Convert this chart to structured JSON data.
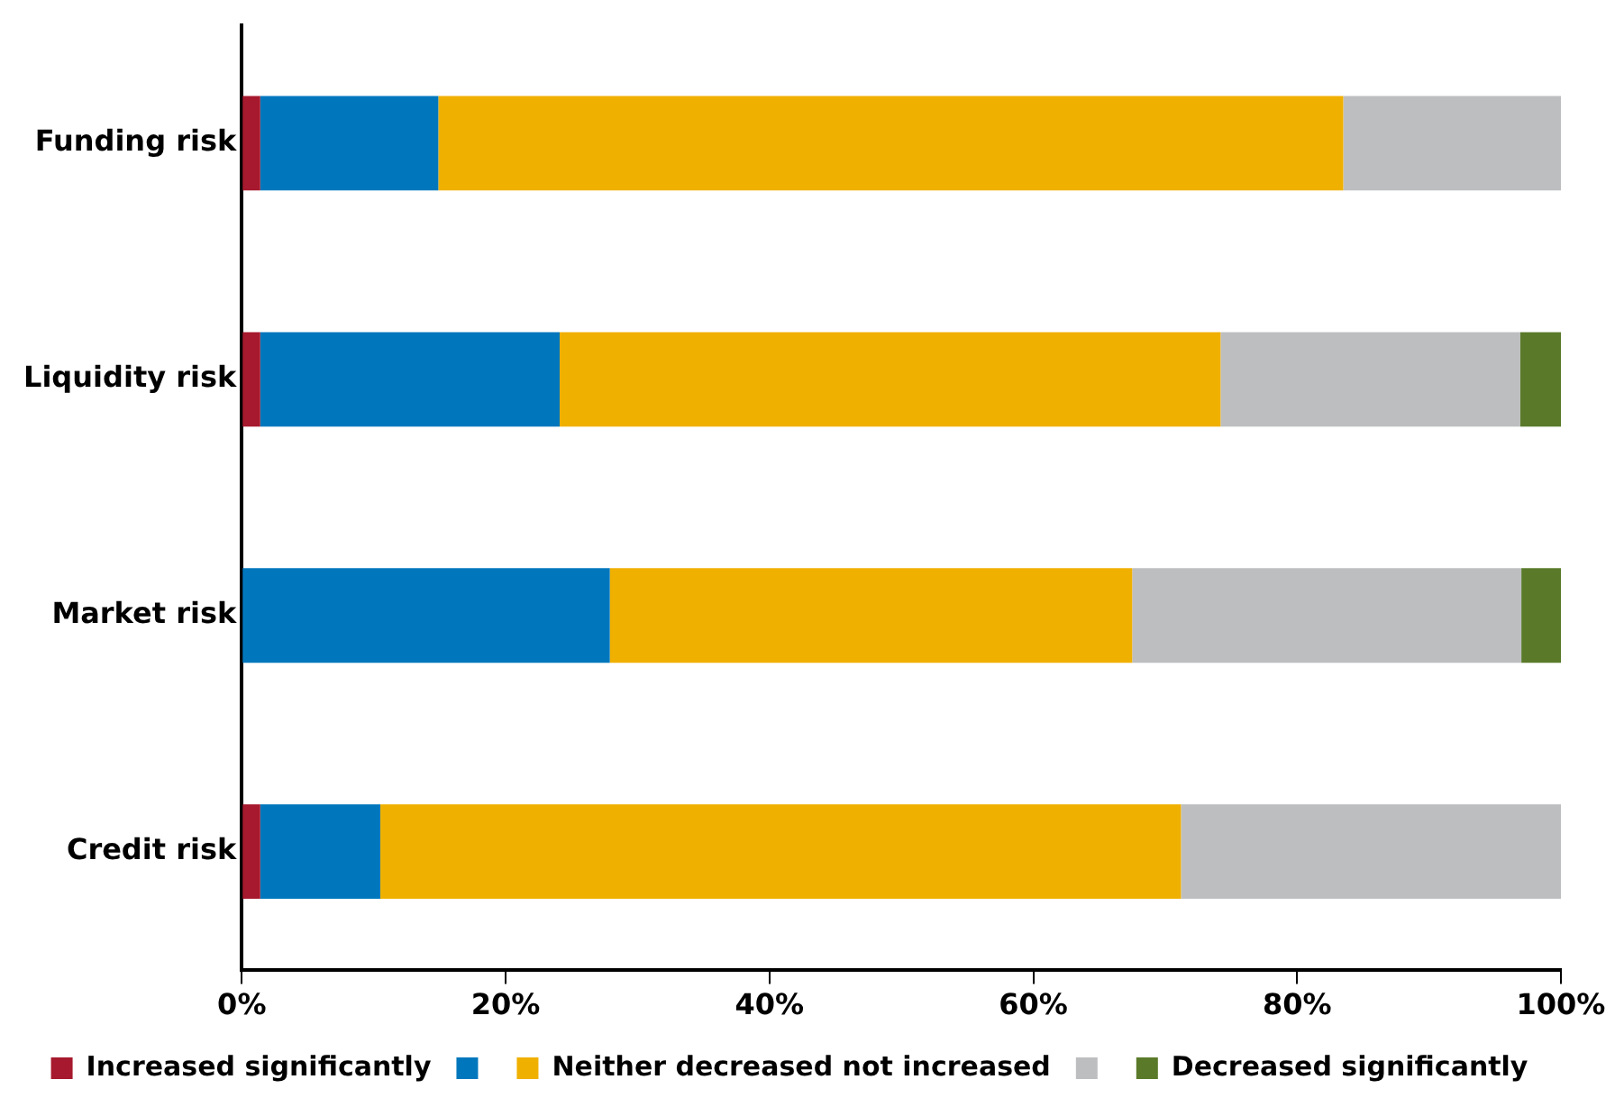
{
  "chart_data": {
    "type": "bar",
    "orientation": "horizontal",
    "stacked": true,
    "categories": [
      "Funding risk",
      "Liquidity risk",
      "Market risk",
      "Credit risk"
    ],
    "series": [
      {
        "name": "Increased significantly",
        "color": "#a6192e",
        "values": [
          1.4,
          1.4,
          0,
          1.4
        ]
      },
      {
        "color": "#0077bd",
        "values": [
          13.5,
          22.7,
          27.9,
          9.1
        ]
      },
      {
        "name": "Neither decreased not increased",
        "color": "#f0b000",
        "values": [
          68.6,
          50.1,
          39.6,
          60.7
        ]
      },
      {
        "color": "#bdbec0",
        "values": [
          16.5,
          22.7,
          29.5,
          28.8
        ]
      },
      {
        "name": "Decreased significantly",
        "color": "#5a7a2a",
        "values": [
          0,
          3.1,
          3.0,
          0
        ]
      }
    ],
    "xlim": [
      0,
      100
    ],
    "xticks": [
      {
        "value": 0,
        "label": "0%"
      },
      {
        "value": 20,
        "label": "20%"
      },
      {
        "value": 40,
        "label": "40%"
      },
      {
        "value": 60,
        "label": "60%"
      },
      {
        "value": 80,
        "label": "80%"
      },
      {
        "value": 100,
        "label": "100%"
      }
    ],
    "grid": false,
    "legend": "bottom"
  }
}
